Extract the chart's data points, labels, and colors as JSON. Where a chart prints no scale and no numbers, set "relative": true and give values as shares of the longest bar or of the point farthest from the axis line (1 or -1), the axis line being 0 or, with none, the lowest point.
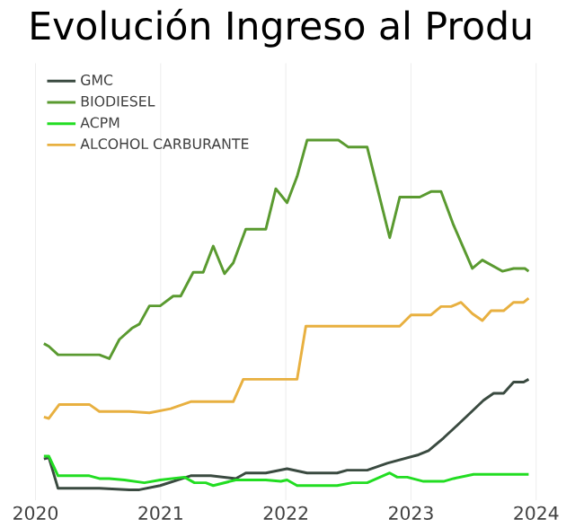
{
  "chart_data": {
    "type": "line",
    "title": "Evolución Ingreso al Produ",
    "relative": true,
    "xlim": [
      2020.0,
      2024.0
    ],
    "xticks": [
      2020,
      2021,
      2022,
      2023,
      2024
    ],
    "grid": "x",
    "legend": "top left",
    "marker": "none",
    "line_style": "solid",
    "series": [
      {
        "name": "GMC",
        "color": "#3a4a40",
        "x": [
          2020.067,
          2020.107,
          2020.18,
          2020.51,
          2020.75,
          2020.83,
          2020.996,
          2021.24,
          2021.4,
          2021.6,
          2021.68,
          2021.84,
          2022.01,
          2022.17,
          2022.41,
          2022.49,
          2022.65,
          2022.81,
          2023.06,
          2023.14,
          2023.26,
          2023.38,
          2023.58,
          2023.66,
          2023.74,
          2023.82,
          2023.9,
          2023.94
        ],
        "values": [
          0.088,
          0.092,
          0.004,
          0.004,
          0,
          0,
          0.012,
          0.04,
          0.04,
          0.032,
          0.048,
          0.048,
          0.06,
          0.048,
          0.048,
          0.056,
          0.056,
          0.076,
          0.1,
          0.112,
          0.148,
          0.188,
          0.256,
          0.276,
          0.276,
          0.308,
          0.308,
          0.316
        ]
      },
      {
        "name": "BIODIESEL",
        "color": "#5a9a30",
        "x": [
          2020.067,
          2020.107,
          2020.18,
          2020.47,
          2020.51,
          2020.59,
          2020.67,
          2020.77,
          2020.83,
          2020.91,
          2020.996,
          2021.1,
          2021.16,
          2021.26,
          2021.34,
          2021.42,
          2021.51,
          2021.58,
          2021.68,
          2021.84,
          2021.92,
          2022.01,
          2022.09,
          2022.17,
          2022.42,
          2022.5,
          2022.65,
          2022.83,
          2022.91,
          2023.07,
          2023.16,
          2023.24,
          2023.34,
          2023.49,
          2023.57,
          2023.73,
          2023.82,
          2023.91,
          2023.94
        ],
        "values": [
          0.418,
          0.41,
          0.386,
          0.386,
          0.386,
          0.375,
          0.43,
          0.462,
          0.474,
          0.526,
          0.526,
          0.554,
          0.554,
          0.622,
          0.622,
          0.697,
          0.618,
          0.649,
          0.745,
          0.745,
          0.861,
          0.821,
          0.896,
          1,
          1,
          0.98,
          0.98,
          0.721,
          0.837,
          0.837,
          0.853,
          0.853,
          0.757,
          0.633,
          0.657,
          0.625,
          0.633,
          0.633,
          0.625
        ]
      },
      {
        "name": "ACPM",
        "color": "#22dd22",
        "x": [
          2020.067,
          2020.107,
          2020.18,
          2020.43,
          2020.51,
          2020.59,
          2020.71,
          2020.87,
          2020.996,
          2021.19,
          2021.27,
          2021.36,
          2021.42,
          2021.6,
          2021.84,
          2021.96,
          2022.01,
          2022.09,
          2022.41,
          2022.53,
          2022.65,
          2022.83,
          2022.89,
          2022.97,
          2023.1,
          2023.26,
          2023.34,
          2023.5,
          2023.7,
          2023.94
        ],
        "values": [
          0.096,
          0.096,
          0.04,
          0.04,
          0.032,
          0.032,
          0.028,
          0.02,
          0.028,
          0.036,
          0.02,
          0.02,
          0.012,
          0.028,
          0.028,
          0.024,
          0.028,
          0.012,
          0.012,
          0.02,
          0.02,
          0.048,
          0.036,
          0.036,
          0.024,
          0.024,
          0.032,
          0.044,
          0.044,
          0.044
        ]
      },
      {
        "name": "ALCOHOL CARBURANTE",
        "color": "#e8b040",
        "x": [
          2020.067,
          2020.107,
          2020.19,
          2020.43,
          2020.51,
          2020.75,
          2020.91,
          2021.08,
          2021.24,
          2021.58,
          2021.66,
          2022.09,
          2022.16,
          2022.91,
          2023.0,
          2023.16,
          2023.24,
          2023.32,
          2023.4,
          2023.49,
          2023.57,
          2023.64,
          2023.74,
          2023.82,
          2023.9,
          2023.94
        ],
        "values": [
          0.208,
          0.204,
          0.244,
          0.244,
          0.224,
          0.224,
          0.22,
          0.232,
          0.252,
          0.252,
          0.316,
          0.316,
          0.468,
          0.468,
          0.5,
          0.5,
          0.524,
          0.524,
          0.536,
          0.504,
          0.484,
          0.512,
          0.512,
          0.536,
          0.536,
          0.548
        ]
      }
    ]
  }
}
